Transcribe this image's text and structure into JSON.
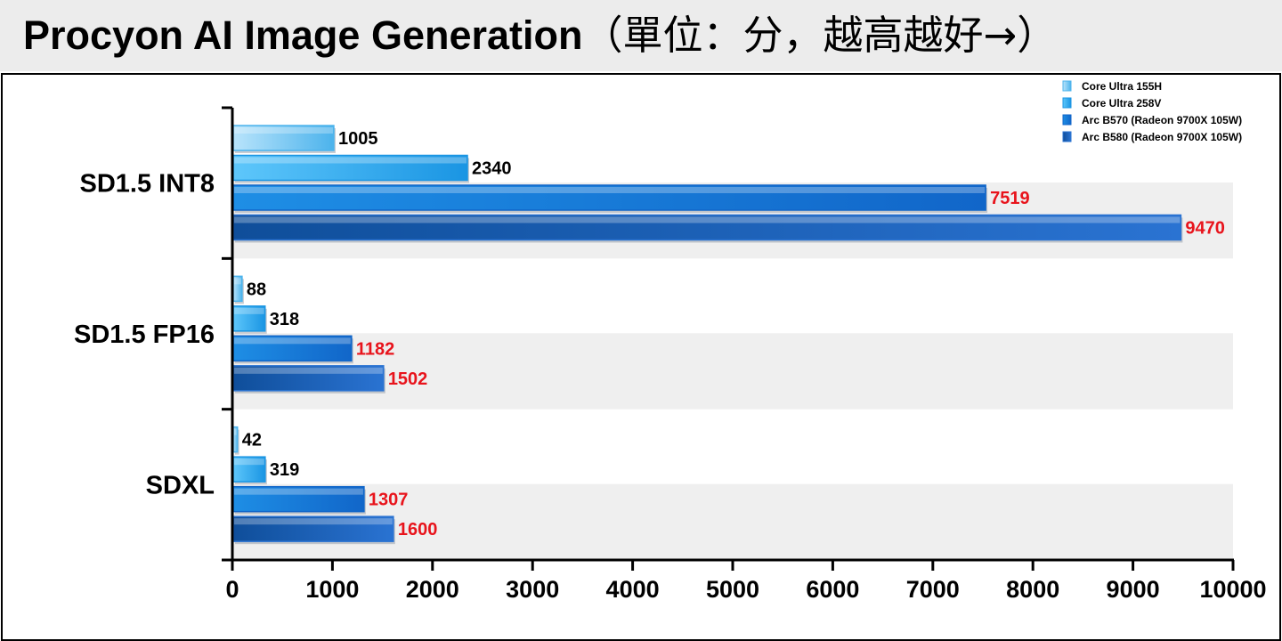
{
  "chart_data": {
    "type": "bar",
    "orientation": "horizontal",
    "title": "Procyon AI Image Generation",
    "title_suffix": "（單位：分，越高越好→）",
    "categories": [
      "SD1.5 INT8",
      "SD1.5 FP16",
      "SDXL"
    ],
    "series": [
      {
        "name": "Core Ultra 155H",
        "values": [
          1005,
          88,
          42
        ],
        "color_light": "#b9e4fb",
        "color_dark": "#4cb3ec",
        "label_color": "#000000"
      },
      {
        "name": "Core Ultra 258V",
        "values": [
          2340,
          318,
          319
        ],
        "color_light": "#5ec7fb",
        "color_dark": "#1a95e3",
        "label_color": "#000000"
      },
      {
        "name": "Arc B570 (Radeon 9700X 105W)",
        "values": [
          7519,
          1182,
          1307
        ],
        "color_light": "#1e8ee5",
        "color_dark": "#1166c9",
        "label_color": "#e8141c"
      },
      {
        "name": "Arc B580 (Radeon 9700X 105W)",
        "values": [
          9470,
          1502,
          1600
        ],
        "color_light": "#0f4e9a",
        "color_dark": "#2a73d2",
        "label_color": "#e8141c"
      }
    ],
    "xlim": [
      0,
      10000
    ],
    "x_ticks": [
      0,
      1000,
      2000,
      3000,
      4000,
      5000,
      6000,
      7000,
      8000,
      9000,
      10000
    ],
    "legend_position": "top-right",
    "band_color": "#efefef",
    "grid": false
  }
}
